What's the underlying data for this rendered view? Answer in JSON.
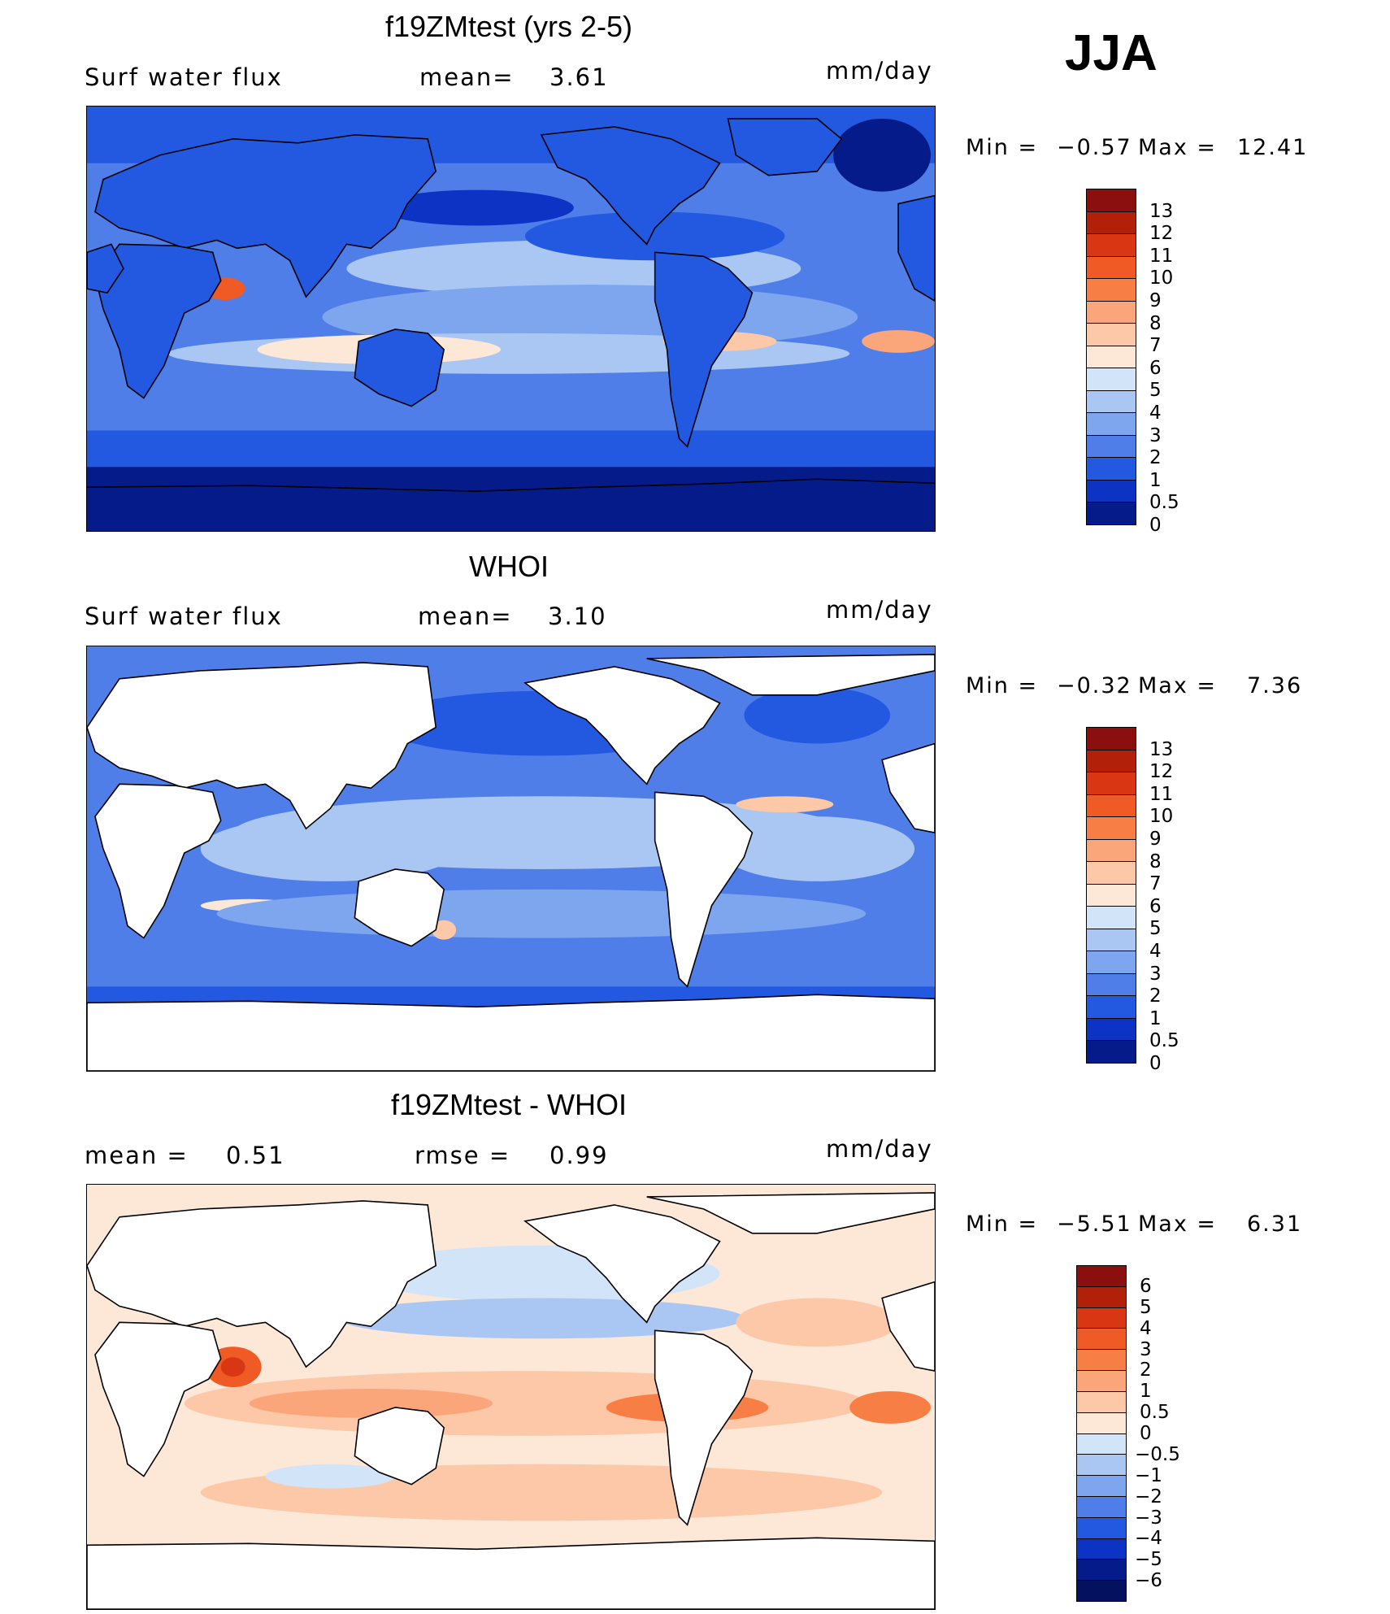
{
  "season": "JJA",
  "land_color": "#ffffff",
  "coast_color": "#000000",
  "panels": [
    {
      "title": "f19ZMtest (yrs 2-5)",
      "left_label": "Surf water flux",
      "mid_label": "mean=",
      "mid_value": "3.61",
      "units": "mm/day",
      "min_label": "Min =",
      "min_value": "−0.57",
      "max_label": "Max =",
      "max_value": "12.41",
      "colorbar": {
        "labels": [
          "13",
          "12",
          "11",
          "10",
          "9",
          "8",
          "7",
          "6",
          "5",
          "4",
          "3",
          "2",
          "1",
          "0.5",
          "0"
        ],
        "colors": [
          "#8b0f0f",
          "#b32009",
          "#d93613",
          "#f05a24",
          "#f77f45",
          "#fba57a",
          "#fcc8a8",
          "#fde8d8",
          "#d2e4f7",
          "#a9c7f2",
          "#7da6ee",
          "#4f7ee9",
          "#2358e0",
          "#0c33c4",
          "#061b8a"
        ]
      }
    },
    {
      "title": "WHOI",
      "left_label": "Surf water flux",
      "mid_label": "mean=",
      "mid_value": "3.10",
      "units": "mm/day",
      "min_label": "Min =",
      "min_value": "−0.32",
      "max_label": "Max =",
      "max_value": "7.36",
      "colorbar": {
        "labels": [
          "13",
          "12",
          "11",
          "10",
          "9",
          "8",
          "7",
          "6",
          "5",
          "4",
          "3",
          "2",
          "1",
          "0.5",
          "0"
        ],
        "colors": [
          "#8b0f0f",
          "#b32009",
          "#d93613",
          "#f05a24",
          "#f77f45",
          "#fba57a",
          "#fcc8a8",
          "#fde8d8",
          "#d2e4f7",
          "#a9c7f2",
          "#7da6ee",
          "#4f7ee9",
          "#2358e0",
          "#0c33c4",
          "#061b8a"
        ]
      }
    },
    {
      "title": "f19ZMtest - WHOI",
      "left_label": "mean =",
      "left_value": "0.51",
      "mid_label": "rmse =",
      "mid_value": "0.99",
      "units": "mm/day",
      "min_label": "Min =",
      "min_value": "−5.51",
      "max_label": "Max =",
      "max_value": "6.31",
      "colorbar": {
        "labels": [
          "6",
          "5",
          "4",
          "3",
          "2",
          "1",
          "0.5",
          "0",
          "−0.5",
          "−1",
          "−2",
          "−3",
          "−4",
          "−5",
          "−6"
        ],
        "colors": [
          "#8b0f0f",
          "#b32009",
          "#d93613",
          "#f05a24",
          "#f77f45",
          "#fba57a",
          "#fcc8a8",
          "#fde8d8",
          "#d2e4f7",
          "#a9c7f2",
          "#7da6ee",
          "#4f7ee9",
          "#2358e0",
          "#0c33c4",
          "#061b8a",
          "#04115e"
        ]
      }
    }
  ]
}
